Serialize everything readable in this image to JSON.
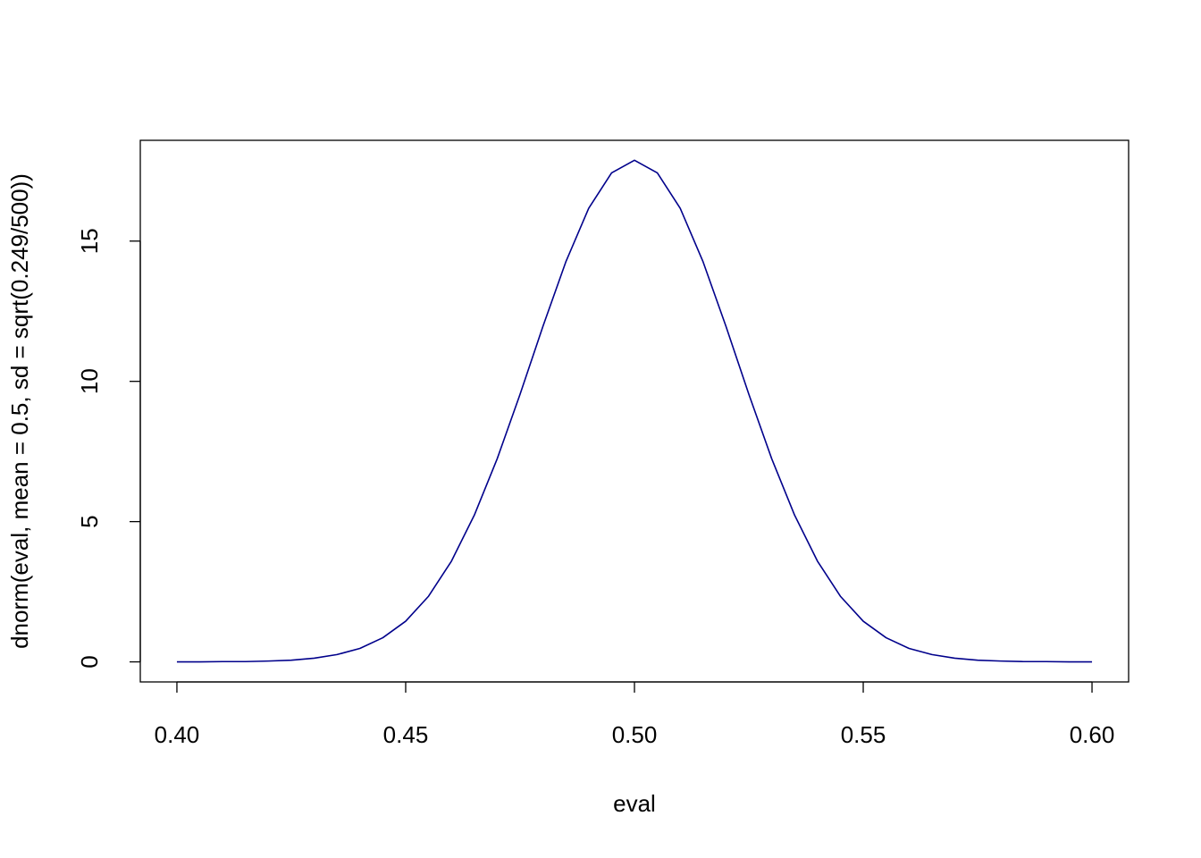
{
  "chart_data": {
    "type": "line",
    "x_label": "eval",
    "y_label": "dnorm(eval, mean = 0.5, sd = sqrt(0.249/500))",
    "x": [
      0.4,
      0.405,
      0.41,
      0.415,
      0.42,
      0.425,
      0.43,
      0.435,
      0.44,
      0.445,
      0.45,
      0.455,
      0.46,
      0.465,
      0.47,
      0.475,
      0.48,
      0.485,
      0.49,
      0.495,
      0.5,
      0.505,
      0.51,
      0.515,
      0.52,
      0.525,
      0.53,
      0.535,
      0.54,
      0.545,
      0.55,
      0.555,
      0.56,
      0.565,
      0.57,
      0.575,
      0.58,
      0.585,
      0.59,
      0.595,
      0.6
    ],
    "series": [
      {
        "color": "#00008b",
        "values": [
          0.0,
          0.0,
          0.01,
          0.01,
          0.03,
          0.06,
          0.13,
          0.26,
          0.48,
          0.86,
          1.45,
          2.34,
          3.59,
          5.23,
          7.24,
          9.54,
          11.96,
          14.26,
          16.17,
          17.43,
          17.88,
          17.43,
          16.17,
          14.26,
          11.96,
          9.54,
          7.24,
          5.23,
          3.59,
          2.34,
          1.45,
          0.86,
          0.48,
          0.26,
          0.13,
          0.06,
          0.03,
          0.01,
          0.01,
          0.0,
          0.0
        ]
      }
    ],
    "xlim": [
      0.392,
      0.608
    ],
    "ylim": [
      -0.715,
      18.592
    ],
    "xticks": [
      {
        "value": 0.4,
        "label": "0.40"
      },
      {
        "value": 0.45,
        "label": "0.45"
      },
      {
        "value": 0.5,
        "label": "0.50"
      },
      {
        "value": 0.55,
        "label": "0.55"
      },
      {
        "value": 0.6,
        "label": "0.60"
      }
    ],
    "yticks": [
      0,
      5,
      10,
      15
    ],
    "grid": false
  }
}
